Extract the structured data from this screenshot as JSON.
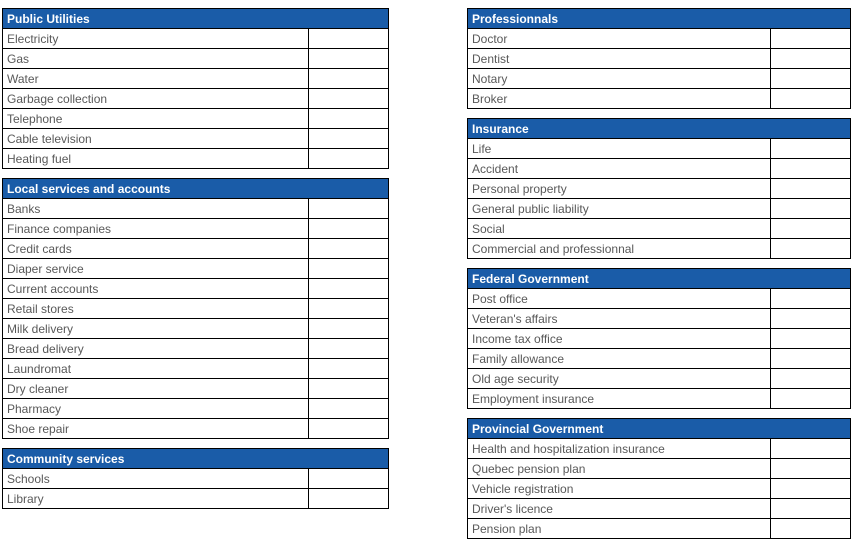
{
  "colors": {
    "header_bg": "#1a5ca8",
    "header_text": "#ffffff",
    "row_text": "#595959",
    "border": "#000000",
    "page_bg": "#ffffff"
  },
  "columns": {
    "left": [
      {
        "id": "public-utilities",
        "title": "Public Utilities",
        "rows": [
          "Electricity",
          "Gas",
          "Water",
          "Garbage collection",
          "Telephone",
          "Cable television",
          "Heating fuel"
        ]
      },
      {
        "id": "local-services-and-accounts",
        "title": "Local services and accounts",
        "rows": [
          "Banks",
          "Finance companies",
          "Credit cards",
          "Diaper service",
          "Current accounts",
          "Retail stores",
          "Milk delivery",
          "Bread delivery",
          "Laundromat",
          "Dry cleaner",
          "Pharmacy",
          "Shoe repair"
        ]
      },
      {
        "id": "community-services",
        "title": "Community services",
        "rows": [
          "Schools",
          "Library"
        ]
      }
    ],
    "right": [
      {
        "id": "professionnals",
        "title": "Professionnals",
        "rows": [
          "Doctor",
          "Dentist",
          "Notary",
          "Broker"
        ]
      },
      {
        "id": "insurance",
        "title": "Insurance",
        "rows": [
          "Life",
          "Accident",
          "Personal property",
          "General public liability",
          "Social",
          "Commercial and professionnal"
        ]
      },
      {
        "id": "federal-government",
        "title": "Federal Government",
        "rows": [
          "Post office",
          "Veteran's affairs",
          "Income tax office",
          "Family allowance",
          "Old age security",
          "Employment insurance"
        ]
      },
      {
        "id": "provincial-government",
        "title": "Provincial Government",
        "rows": [
          "Health and hospitalization insurance",
          "Quebec pension plan",
          "Vehicle registration",
          "Driver's licence",
          "Pension plan"
        ]
      }
    ]
  }
}
